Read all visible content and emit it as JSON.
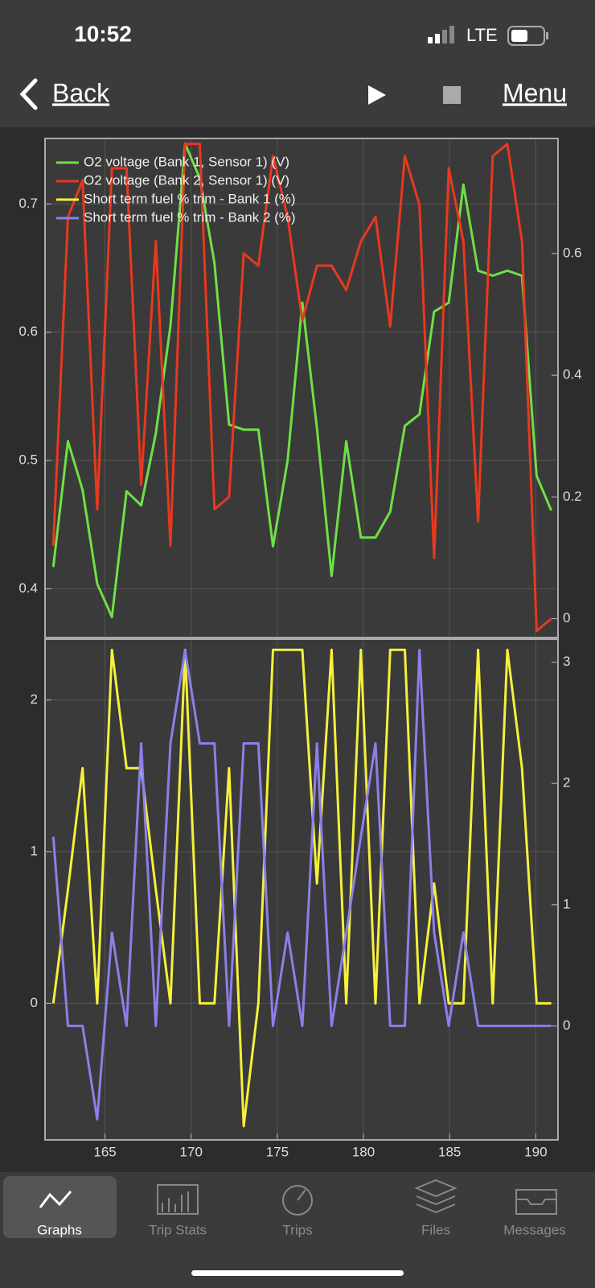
{
  "status": {
    "time": "10:52",
    "network": "LTE"
  },
  "nav": {
    "back": "Back",
    "menu": "Menu"
  },
  "tabs": [
    "Graphs",
    "Trip Stats",
    "Trips",
    "Files",
    "Messages"
  ],
  "chart_data": [
    {
      "type": "line",
      "legend": "upper left",
      "grid": true,
      "x": [
        162,
        162.85,
        163.7,
        164.55,
        165.4,
        166.25,
        167.1,
        167.95,
        168.8,
        169.65,
        170.5,
        171.35,
        172.2,
        173.05,
        173.9,
        174.75,
        175.6,
        176.45,
        177.3,
        178.15,
        179,
        179.85,
        180.7,
        181.55,
        182.4,
        183.25,
        184.1,
        184.95,
        185.8,
        186.65,
        187.5,
        188.35,
        189.2,
        190.05,
        190.9
      ],
      "xlim": [
        161.52,
        191.29
      ],
      "ylim": [
        0.362,
        0.751
      ],
      "yticks": [
        0.4,
        0.5,
        0.6,
        0.7
      ],
      "y2lim": [
        -0.031,
        0.789
      ],
      "y2ticks": [
        0,
        0.2,
        0.4,
        0.6
      ],
      "series": [
        {
          "name": "O2 voltage (Bank 1, Sensor 1) (V)",
          "color": "#6fe046",
          "values": [
            0.417,
            0.515,
            0.477,
            0.404,
            0.378,
            0.476,
            0.465,
            0.521,
            0.605,
            0.747,
            0.72,
            0.654,
            0.528,
            0.524,
            0.524,
            0.433,
            0.5,
            0.623,
            0.525,
            0.41,
            0.515,
            0.44,
            0.44,
            0.46,
            0.527,
            0.536,
            0.616,
            0.623,
            0.715,
            0.648,
            0.644,
            0.648,
            0.644,
            0.488,
            0.461
          ]
        },
        {
          "name": "O2 voltage (Bank 2, Sensor 1) (V)",
          "color": "#e8391e",
          "axis": "y2",
          "values": [
            0.12,
            0.66,
            0.72,
            0.18,
            0.74,
            0.74,
            0.22,
            0.62,
            0.12,
            0.78,
            0.78,
            0.18,
            0.2,
            0.6,
            0.58,
            0.76,
            0.66,
            0.49,
            0.58,
            0.58,
            0.54,
            0.62,
            0.66,
            0.48,
            0.76,
            0.68,
            0.1,
            0.74,
            0.62,
            0.16,
            0.76,
            0.78,
            0.62,
            -0.02,
            0
          ]
        }
      ]
    },
    {
      "type": "line",
      "grid": true,
      "x": [
        162,
        162.85,
        163.7,
        164.55,
        165.4,
        166.25,
        167.1,
        167.95,
        168.8,
        169.65,
        170.5,
        171.35,
        172.2,
        173.05,
        173.9,
        174.75,
        175.6,
        176.45,
        177.3,
        178.15,
        179,
        179.85,
        180.7,
        181.55,
        182.4,
        183.25,
        184.1,
        184.95,
        185.8,
        186.65,
        187.5,
        188.35,
        189.2,
        190.05,
        190.9
      ],
      "xlim": [
        161.52,
        191.29
      ],
      "xticks": [
        165,
        170,
        175,
        180,
        185,
        190
      ],
      "ylim": [
        -0.9,
        2.4
      ],
      "yticks": [
        0,
        1,
        2
      ],
      "y2lim": [
        -0.94,
        3.19
      ],
      "y2ticks": [
        0,
        1,
        2,
        3
      ],
      "series": [
        {
          "name": "Short term fuel % trim - Bank 1 (%)",
          "color": "#f5f03c",
          "values": [
            0,
            0.75,
            1.55,
            0,
            2.33,
            1.55,
            1.55,
            0.75,
            0,
            2.33,
            0,
            0,
            1.55,
            -0.81,
            0,
            2.33,
            2.33,
            2.33,
            0.79,
            2.33,
            0,
            2.33,
            0,
            2.33,
            2.33,
            0,
            0.79,
            0,
            0,
            2.33,
            0,
            2.33,
            1.55,
            0,
            0
          ]
        },
        {
          "name": "Short term fuel % trim - Bank 2 (%)",
          "color": "#8b80e8",
          "axis": "y2",
          "values": [
            1.56,
            0,
            0,
            -0.77,
            0.77,
            0,
            2.33,
            0,
            2.33,
            3.1,
            2.33,
            2.33,
            0,
            2.33,
            2.33,
            0,
            0.77,
            0,
            2.33,
            0,
            0.77,
            1.56,
            2.33,
            0,
            0,
            3.1,
            0.77,
            0,
            0.77,
            0,
            0,
            0,
            0,
            0,
            0
          ]
        }
      ]
    }
  ]
}
